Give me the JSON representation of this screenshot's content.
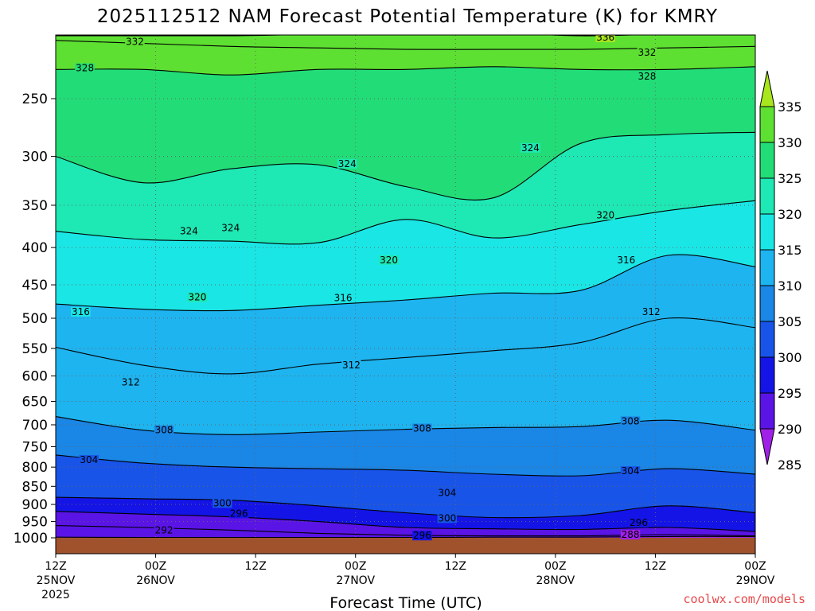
{
  "title": "2025112512 NAM Forecast Potential Temperature (K) for KMRY",
  "xlabel": "Forecast Time (UTC)",
  "credit": "coolwx.com/models",
  "colors": {
    "ground": "#a0522d",
    "contour": "#000000",
    "grid": "#666666",
    "credit": "#e8494a"
  },
  "chart_data": {
    "type": "heatmap",
    "title": "2025112512 NAM Forecast Potential Temperature (K) for KMRY",
    "xlabel": "Forecast Time (UTC)",
    "ylabel": "",
    "y_scale": "log-pressure (hPa, inverted)",
    "x_ticks": [
      {
        "hour": 0,
        "time": "12Z",
        "date": "25NOV",
        "year": "2025"
      },
      {
        "hour": 12,
        "time": "00Z",
        "date": "26NOV",
        "year": ""
      },
      {
        "hour": 24,
        "time": "12Z",
        "date": "",
        "year": ""
      },
      {
        "hour": 36,
        "time": "00Z",
        "date": "27NOV",
        "year": ""
      },
      {
        "hour": 48,
        "time": "12Z",
        "date": "",
        "year": ""
      },
      {
        "hour": 60,
        "time": "00Z",
        "date": "28NOV",
        "year": ""
      },
      {
        "hour": 72,
        "time": "12Z",
        "date": "",
        "year": ""
      },
      {
        "hour": 84,
        "time": "00Z",
        "date": "29NOV",
        "year": ""
      }
    ],
    "y_ticks": [
      250,
      300,
      350,
      400,
      450,
      500,
      550,
      600,
      650,
      700,
      750,
      800,
      850,
      900,
      950,
      1000
    ],
    "pressure_range": [
      200,
      1000
    ],
    "colorbar": {
      "labels": [
        335,
        330,
        325,
        320,
        315,
        310,
        305,
        300,
        295,
        290,
        285
      ],
      "bands": [
        {
          "min": 335,
          "max": 340,
          "color": "#a8e61d"
        },
        {
          "min": 330,
          "max": 335,
          "color": "#5ee032"
        },
        {
          "min": 325,
          "max": 330,
          "color": "#22dd77"
        },
        {
          "min": 320,
          "max": 325,
          "color": "#1ee8b4"
        },
        {
          "min": 315,
          "max": 320,
          "color": "#1be6e6"
        },
        {
          "min": 310,
          "max": 315,
          "color": "#1eb4f0"
        },
        {
          "min": 305,
          "max": 310,
          "color": "#1a86e6"
        },
        {
          "min": 300,
          "max": 305,
          "color": "#1854e8"
        },
        {
          "min": 295,
          "max": 300,
          "color": "#1414e6"
        },
        {
          "min": 290,
          "max": 295,
          "color": "#5a14e6"
        },
        {
          "min": 285,
          "max": 290,
          "color": "#a020e8"
        }
      ]
    },
    "contour_interval": 4,
    "contours": [
      {
        "value": 336,
        "pressure_by_day": [
          205,
          205,
          205,
          204,
          203,
          203,
          205,
          204,
          204
        ]
      },
      {
        "value": 332,
        "pressure_by_day": [
          208,
          210,
          212,
          213,
          214,
          214,
          214,
          213,
          212
        ]
      },
      {
        "value": 328,
        "pressure_by_day": [
          228,
          228,
          232,
          228,
          228,
          226,
          228,
          228,
          226
        ]
      },
      {
        "value": 324,
        "pressure_by_day": [
          300,
          326,
          312,
          308,
          330,
          342,
          288,
          280,
          278
        ]
      },
      {
        "value": 320,
        "pressure_by_day": [
          380,
          390,
          392,
          394,
          366,
          388,
          372,
          356,
          345
        ]
      },
      {
        "value": 316,
        "pressure_by_day": [
          478,
          486,
          488,
          480,
          472,
          462,
          458,
          410,
          425
        ]
      },
      {
        "value": 312,
        "pressure_by_day": [
          548,
          580,
          596,
          578,
          566,
          554,
          540,
          500,
          515
        ]
      },
      {
        "value": 308,
        "pressure_by_day": [
          682,
          712,
          722,
          716,
          710,
          706,
          704,
          690,
          712
        ]
      },
      {
        "value": 304,
        "pressure_by_day": [
          770,
          790,
          800,
          804,
          808,
          818,
          822,
          804,
          818
        ]
      },
      {
        "value": 300,
        "pressure_by_day": [
          880,
          884,
          888,
          904,
          924,
          938,
          932,
          904,
          924
        ]
      },
      {
        "value": 296,
        "pressure_by_day": [
          920,
          928,
          936,
          950,
          968,
          972,
          974,
          968,
          980
        ]
      },
      {
        "value": 292,
        "pressure_by_day": [
          962,
          968,
          976,
          986,
          992,
          994,
          994,
          990,
          994
        ]
      },
      {
        "value": 288,
        "pressure_by_day": [
          998,
          999,
          999,
          999,
          999,
          998,
          998,
          996,
          996
        ]
      }
    ],
    "contour_labels": [
      {
        "text": "332",
        "hour": 9.5,
        "pressure": 209
      },
      {
        "text": "336",
        "hour": 66,
        "pressure": 206
      },
      {
        "text": "332",
        "hour": 71,
        "pressure": 216
      },
      {
        "text": "328",
        "hour": 3.5,
        "pressure": 227
      },
      {
        "text": "328",
        "hour": 71,
        "pressure": 233
      },
      {
        "text": "324",
        "hour": 35,
        "pressure": 307
      },
      {
        "text": "324",
        "hour": 57,
        "pressure": 292
      },
      {
        "text": "324",
        "hour": 16,
        "pressure": 380
      },
      {
        "text": "324",
        "hour": 21,
        "pressure": 376
      },
      {
        "text": "320",
        "hour": 66,
        "pressure": 361
      },
      {
        "text": "320",
        "hour": 40,
        "pressure": 416
      },
      {
        "text": "316",
        "hour": 68.5,
        "pressure": 416
      },
      {
        "text": "320",
        "hour": 17,
        "pressure": 468
      },
      {
        "text": "316",
        "hour": 34.5,
        "pressure": 469
      },
      {
        "text": "316",
        "hour": 3,
        "pressure": 490
      },
      {
        "text": "312",
        "hour": 71.5,
        "pressure": 490
      },
      {
        "text": "312",
        "hour": 35.5,
        "pressure": 580
      },
      {
        "text": "312",
        "hour": 9,
        "pressure": 612
      },
      {
        "text": "308",
        "hour": 13,
        "pressure": 712
      },
      {
        "text": "308",
        "hour": 44,
        "pressure": 708
      },
      {
        "text": "308",
        "hour": 69,
        "pressure": 692
      },
      {
        "text": "304",
        "hour": 4,
        "pressure": 782
      },
      {
        "text": "304",
        "hour": 69,
        "pressure": 810
      },
      {
        "text": "304",
        "hour": 47,
        "pressure": 868
      },
      {
        "text": "300",
        "hour": 20,
        "pressure": 896
      },
      {
        "text": "296",
        "hour": 22,
        "pressure": 926
      },
      {
        "text": "300",
        "hour": 47,
        "pressure": 940
      },
      {
        "text": "296",
        "hour": 70,
        "pressure": 954
      },
      {
        "text": "292",
        "hour": 13,
        "pressure": 977
      },
      {
        "text": "296",
        "hour": 44,
        "pressure": 993
      },
      {
        "text": "288",
        "hour": 69,
        "pressure": 990
      }
    ],
    "ground": {
      "pressure_top": 1000,
      "color": "#a0522d"
    }
  }
}
